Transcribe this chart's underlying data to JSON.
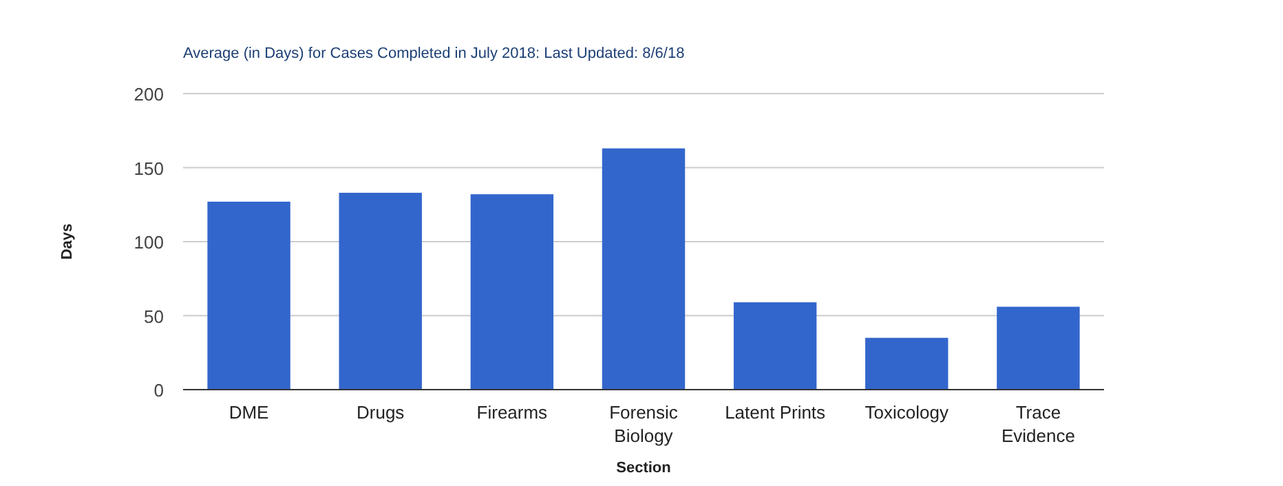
{
  "chart_data": {
    "type": "bar",
    "title": "Average (in Days) for Cases Completed in July 2018: Last Updated: 8/6/18",
    "xlabel": "Section",
    "ylabel": "Days",
    "categories": [
      "DME",
      "Drugs",
      "Firearms",
      "Forensic Biology",
      "Latent Prints",
      "Toxicology",
      "Trace Evidence"
    ],
    "values": [
      127,
      133,
      132,
      163,
      59,
      35,
      56
    ],
    "color": "#3366cc",
    "ylim": [
      0,
      200
    ],
    "yticks": [
      0,
      50,
      100,
      150,
      200
    ],
    "grid": "y"
  }
}
